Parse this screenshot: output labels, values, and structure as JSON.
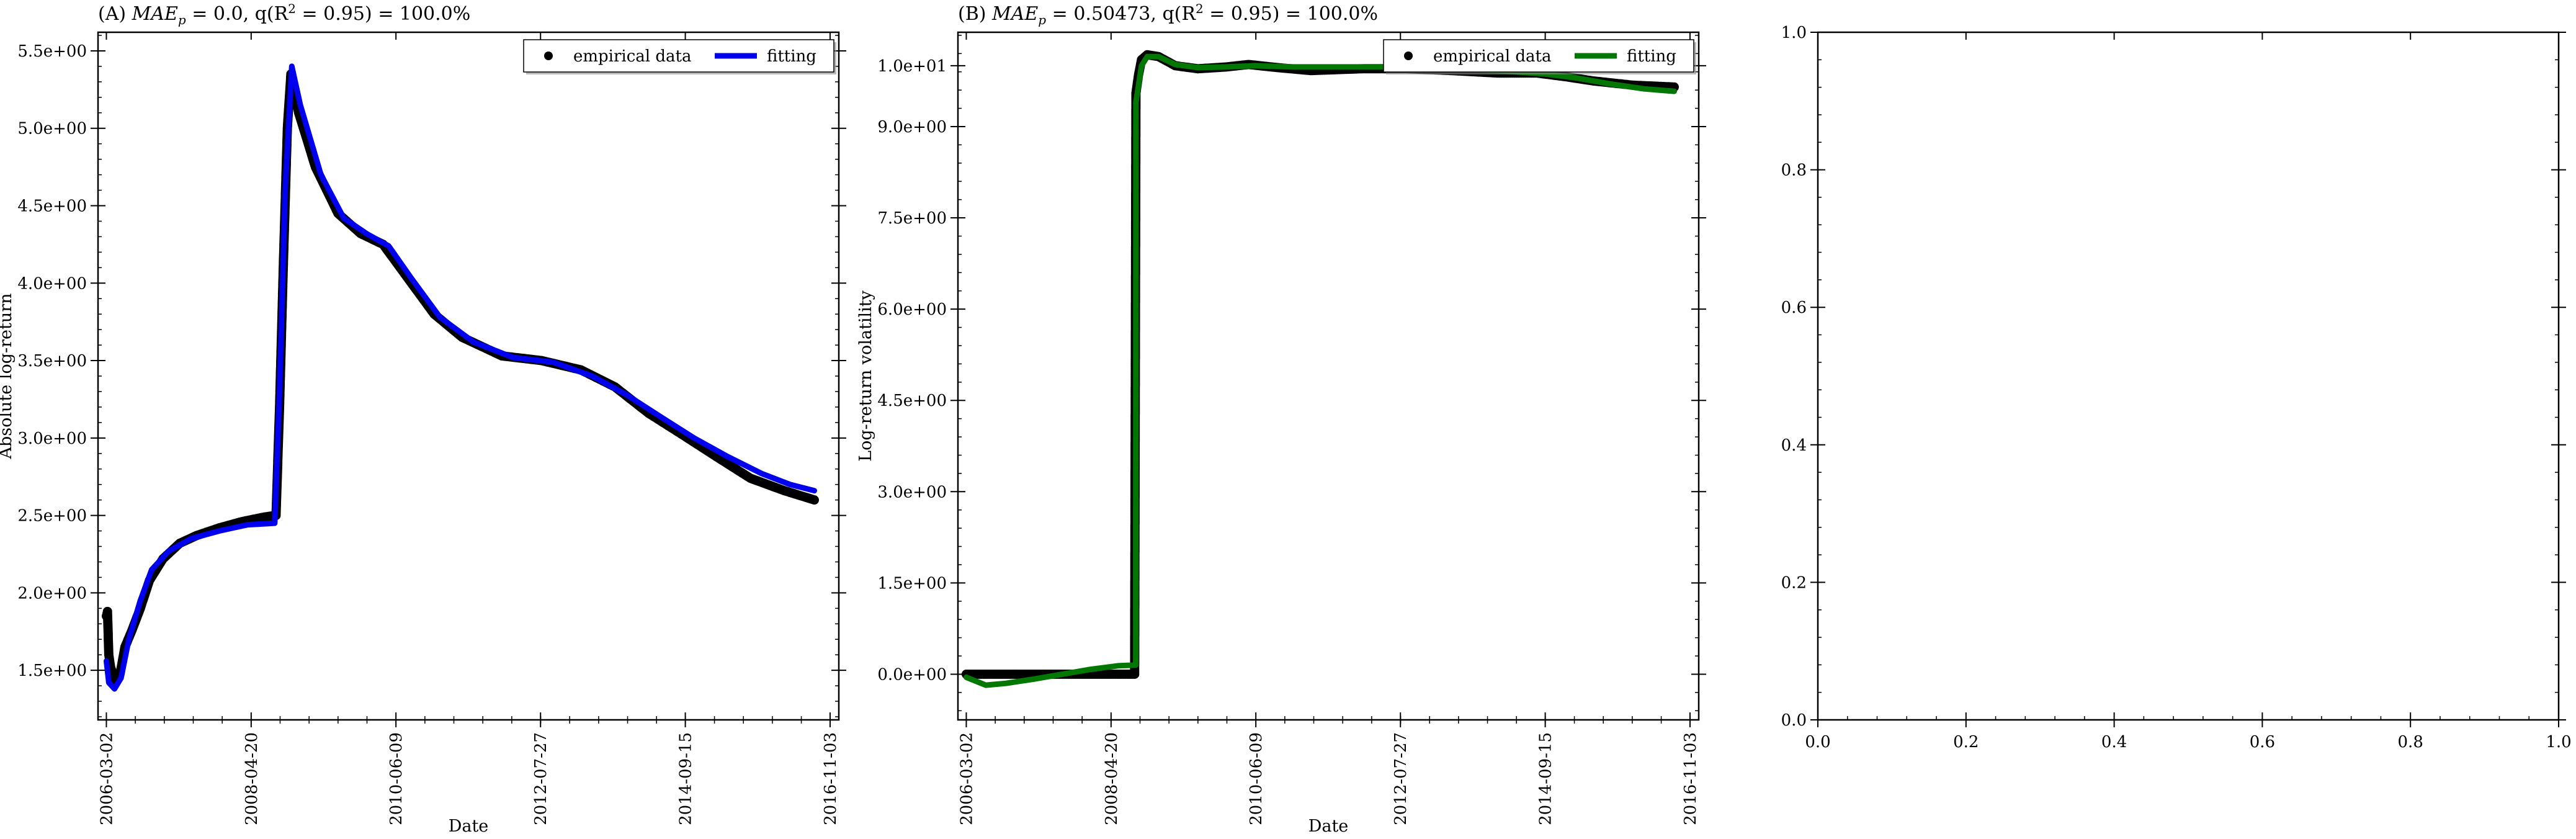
{
  "chart_data": [
    {
      "id": "A",
      "type": "line",
      "title": "(A) MAE_p = 0.0, q(R^2 = 0.95) = 100.0%",
      "title_parts": {
        "prefix": "(A) ",
        "sym": "MAE",
        "sub": "p",
        "body": " = 0.0, q(R",
        "sup": "2",
        "tail": " = 0.95) = 100.0%"
      },
      "xlabel": "Date",
      "ylabel": "Absolute log-return",
      "x_ticks": [
        "2006-03-02",
        "2008-04-20",
        "2010-06-09",
        "2012-07-27",
        "2014-09-15",
        "2016-11-03"
      ],
      "xlim": [
        "2006-01-16",
        "2016-12-20"
      ],
      "ylim": [
        1.18,
        5.62
      ],
      "y_ticks": [
        1.5,
        2.0,
        2.5,
        3.0,
        3.5,
        4.0,
        4.5,
        5.0,
        5.5
      ],
      "y_tick_labels": [
        "1.5e+00",
        "2.0e+00",
        "2.5e+00",
        "3.0e+00",
        "3.5e+00",
        "4.0e+00",
        "4.5e+00",
        "5.0e+00",
        "5.5e+00"
      ],
      "legend": {
        "position": "top-right",
        "entries": [
          "empirical data",
          "fitting"
        ]
      },
      "series": [
        {
          "name": "empirical data",
          "style": "markers",
          "color": "#000000",
          "points": [
            [
              "2006-03-02",
              1.85
            ],
            [
              "2006-03-08",
              1.88
            ],
            [
              "2006-03-15",
              1.6
            ],
            [
              "2006-03-25",
              1.52
            ],
            [
              "2006-04-20",
              1.42
            ],
            [
              "2006-05-15",
              1.48
            ],
            [
              "2006-06-10",
              1.65
            ],
            [
              "2006-07-15",
              1.75
            ],
            [
              "2006-09-01",
              1.9
            ],
            [
              "2006-10-20",
              2.08
            ],
            [
              "2007-01-01",
              2.22
            ],
            [
              "2007-04-01",
              2.32
            ],
            [
              "2007-07-01",
              2.37
            ],
            [
              "2007-11-01",
              2.42
            ],
            [
              "2008-03-01",
              2.46
            ],
            [
              "2008-07-01",
              2.49
            ],
            [
              "2008-09-01",
              2.5
            ],
            [
              "2008-09-20",
              3.2
            ],
            [
              "2008-10-10",
              4.1
            ],
            [
              "2008-11-01",
              5.0
            ],
            [
              "2008-11-20",
              5.35
            ],
            [
              "2009-01-01",
              5.1
            ],
            [
              "2009-04-01",
              4.75
            ],
            [
              "2009-08-01",
              4.45
            ],
            [
              "2009-12-01",
              4.32
            ],
            [
              "2010-04-01",
              4.25
            ],
            [
              "2010-08-01",
              4.05
            ],
            [
              "2011-01-01",
              3.8
            ],
            [
              "2011-06-01",
              3.65
            ],
            [
              "2012-01-01",
              3.53
            ],
            [
              "2012-08-01",
              3.5
            ],
            [
              "2013-03-01",
              3.44
            ],
            [
              "2013-09-01",
              3.33
            ],
            [
              "2014-03-01",
              3.16
            ],
            [
              "2014-09-01",
              3.02
            ],
            [
              "2015-03-01",
              2.88
            ],
            [
              "2015-09-01",
              2.74
            ],
            [
              "2016-03-01",
              2.66
            ],
            [
              "2016-08-10",
              2.6
            ]
          ]
        },
        {
          "name": "fitting",
          "style": "line",
          "color": "#0000ee",
          "points": [
            [
              "2006-03-02",
              1.56
            ],
            [
              "2006-03-15",
              1.42
            ],
            [
              "2006-04-15",
              1.38
            ],
            [
              "2006-05-20",
              1.45
            ],
            [
              "2006-07-01",
              1.7
            ],
            [
              "2006-09-01",
              1.95
            ],
            [
              "2006-11-01",
              2.15
            ],
            [
              "2007-02-01",
              2.27
            ],
            [
              "2007-06-01",
              2.35
            ],
            [
              "2007-11-01",
              2.4
            ],
            [
              "2008-04-01",
              2.44
            ],
            [
              "2008-08-25",
              2.45
            ],
            [
              "2008-09-20",
              3.3
            ],
            [
              "2008-10-20",
              4.6
            ],
            [
              "2008-11-25",
              5.4
            ],
            [
              "2009-01-10",
              5.15
            ],
            [
              "2009-05-01",
              4.7
            ],
            [
              "2009-09-01",
              4.42
            ],
            [
              "2010-01-01",
              4.32
            ],
            [
              "2010-05-01",
              4.24
            ],
            [
              "2010-09-01",
              4.03
            ],
            [
              "2011-02-01",
              3.78
            ],
            [
              "2011-08-01",
              3.62
            ],
            [
              "2012-03-01",
              3.52
            ],
            [
              "2012-10-01",
              3.49
            ],
            [
              "2013-05-01",
              3.4
            ],
            [
              "2013-11-01",
              3.28
            ],
            [
              "2014-05-01",
              3.14
            ],
            [
              "2014-11-01",
              3.0
            ],
            [
              "2015-05-01",
              2.88
            ],
            [
              "2015-11-01",
              2.77
            ],
            [
              "2016-04-01",
              2.7
            ],
            [
              "2016-08-10",
              2.66
            ]
          ]
        }
      ]
    },
    {
      "id": "B",
      "type": "line",
      "title": "(B) MAE_p = 0.50473, q(R^2 = 0.95) = 100.0%",
      "title_parts": {
        "prefix": "(B) ",
        "sym": "MAE",
        "sub": "p",
        "body": " = 0.50473, q(R",
        "sup": "2",
        "tail": " = 0.95) = 100.0%"
      },
      "xlabel": "Date",
      "ylabel": "Log-return volatility",
      "x_ticks": [
        "2006-03-02",
        "2008-04-20",
        "2010-06-09",
        "2012-07-27",
        "2014-09-15",
        "2016-11-03"
      ],
      "xlim": [
        "2006-01-16",
        "2016-12-20"
      ],
      "ylim": [
        -0.75,
        10.55
      ],
      "y_ticks": [
        0.0,
        1.5,
        3.0,
        4.5,
        6.0,
        7.5,
        9.0,
        10.0
      ],
      "y_tick_labels": [
        "0.0e+00",
        "1.5e+00",
        "3.0e+00",
        "4.5e+00",
        "6.0e+00",
        "7.5e+00",
        "9.0e+00",
        "1.0e+01"
      ],
      "legend": {
        "position": "top-right",
        "entries": [
          "empirical data",
          "fitting"
        ]
      },
      "series": [
        {
          "name": "empirical data",
          "style": "markers",
          "color": "#000000",
          "points": [
            [
              "2006-03-02",
              0.0
            ],
            [
              "2006-09-01",
              0.0
            ],
            [
              "2007-03-01",
              0.0
            ],
            [
              "2007-09-01",
              0.0
            ],
            [
              "2008-03-01",
              0.0
            ],
            [
              "2008-08-25",
              0.0
            ],
            [
              "2008-09-01",
              9.55
            ],
            [
              "2008-09-15",
              9.85
            ],
            [
              "2008-10-01",
              10.1
            ],
            [
              "2008-11-01",
              10.18
            ],
            [
              "2009-01-01",
              10.15
            ],
            [
              "2009-04-01",
              10.0
            ],
            [
              "2009-08-01",
              9.95
            ],
            [
              "2010-01-01",
              9.98
            ],
            [
              "2010-05-01",
              10.02
            ],
            [
              "2010-10-01",
              9.97
            ],
            [
              "2011-04-01",
              9.92
            ],
            [
              "2012-01-01",
              9.95
            ],
            [
              "2012-09-01",
              9.95
            ],
            [
              "2013-05-01",
              9.92
            ],
            [
              "2014-01-01",
              9.88
            ],
            [
              "2014-08-01",
              9.88
            ],
            [
              "2015-01-01",
              9.82
            ],
            [
              "2015-06-01",
              9.75
            ],
            [
              "2016-01-01",
              9.68
            ],
            [
              "2016-08-10",
              9.65
            ]
          ]
        },
        {
          "name": "fitting",
          "style": "line",
          "color": "#007700",
          "points": [
            [
              "2006-03-02",
              -0.05
            ],
            [
              "2006-06-15",
              -0.18
            ],
            [
              "2006-10-01",
              -0.15
            ],
            [
              "2007-03-01",
              -0.08
            ],
            [
              "2007-08-01",
              0.0
            ],
            [
              "2008-01-01",
              0.08
            ],
            [
              "2008-06-01",
              0.14
            ],
            [
              "2008-08-31",
              0.15
            ],
            [
              "2008-09-01",
              9.4
            ],
            [
              "2008-10-01",
              10.0
            ],
            [
              "2008-11-01",
              10.15
            ],
            [
              "2009-01-01",
              10.15
            ],
            [
              "2009-04-01",
              10.02
            ],
            [
              "2009-08-01",
              9.97
            ],
            [
              "2010-01-01",
              9.98
            ],
            [
              "2010-06-01",
              10.0
            ],
            [
              "2011-01-01",
              9.98
            ],
            [
              "2011-09-01",
              9.98
            ],
            [
              "2012-06-01",
              9.98
            ],
            [
              "2013-03-01",
              9.96
            ],
            [
              "2014-01-01",
              9.92
            ],
            [
              "2014-09-01",
              9.87
            ],
            [
              "2015-03-01",
              9.8
            ],
            [
              "2015-09-01",
              9.7
            ],
            [
              "2016-03-01",
              9.62
            ],
            [
              "2016-08-10",
              9.58
            ]
          ]
        }
      ]
    },
    {
      "id": "C",
      "type": "line",
      "title": "",
      "xlabel": "",
      "ylabel": "",
      "xlim": [
        0.0,
        1.0
      ],
      "ylim": [
        0.0,
        1.0
      ],
      "x_ticks": [
        0.0,
        0.2,
        0.4,
        0.6,
        0.8,
        1.0
      ],
      "x_tick_labels": [
        "0.0",
        "0.2",
        "0.4",
        "0.6",
        "0.8",
        "1.0"
      ],
      "y_ticks": [
        0.0,
        0.2,
        0.4,
        0.6,
        0.8,
        1.0
      ],
      "y_tick_labels": [
        "0.0",
        "0.2",
        "0.4",
        "0.6",
        "0.8",
        "1.0"
      ],
      "series": []
    }
  ]
}
